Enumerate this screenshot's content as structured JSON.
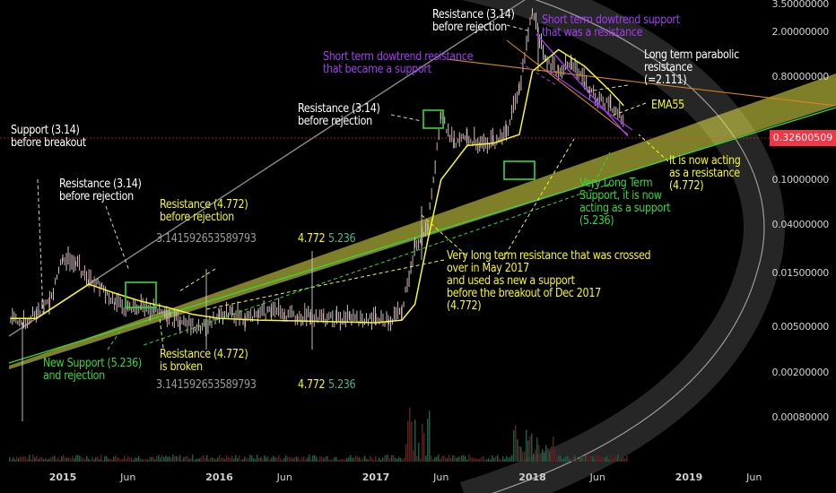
{
  "chart_data": {
    "type": "line",
    "scale": "log",
    "title": "",
    "y_ticks": [
      "3.50000000",
      "2.00000000",
      "0.80000000",
      "0.32600509",
      "0.10000000",
      "0.04000000",
      "0.01500000",
      "0.00500000",
      "0.00200000",
      "0.00080000"
    ],
    "x_ticks": [
      "2015",
      "Jun",
      "2016",
      "Jun",
      "2017",
      "Jun",
      "2018",
      "Jun",
      "2019",
      "Jun"
    ],
    "current_price": "0.32600509",
    "current_price_color": "#f23645",
    "series": [
      {
        "name": "EMA55",
        "color": "#f7f72a",
        "x": [
          "2014-09",
          "2014-11",
          "2015-01",
          "2015-03",
          "2015-05",
          "2015-07",
          "2015-09",
          "2015-11",
          "2016-01",
          "2016-04",
          "2016-07",
          "2016-10",
          "2017-01",
          "2017-03",
          "2017-04",
          "2017-05",
          "2017-06",
          "2017-08",
          "2017-10",
          "2017-12",
          "2018-01",
          "2018-03",
          "2018-05",
          "2018-07",
          "2018-08"
        ],
        "values": [
          0.006,
          0.006,
          0.0085,
          0.012,
          0.01,
          0.0085,
          0.0075,
          0.0065,
          0.006,
          0.0058,
          0.0057,
          0.0056,
          0.0055,
          0.0058,
          0.008,
          0.03,
          0.1,
          0.2,
          0.21,
          0.25,
          0.9,
          1.4,
          1.0,
          0.6,
          0.45
        ]
      }
    ],
    "price_x": [
      "2014-09",
      "2014-10",
      "2014-11",
      "2014-12",
      "2015-01",
      "2015-02",
      "2015-03",
      "2015-04",
      "2015-05",
      "2015-06",
      "2015-07",
      "2015-08",
      "2015-09",
      "2015-10",
      "2015-11",
      "2015-12",
      "2016-01",
      "2016-02",
      "2016-03",
      "2016-04",
      "2016-05",
      "2016-06",
      "2016-07",
      "2016-08",
      "2016-09",
      "2016-10",
      "2016-11",
      "2016-12",
      "2017-01",
      "2017-02",
      "2017-03",
      "2017-04",
      "2017-05",
      "2017-06",
      "2017-07",
      "2017-08",
      "2017-09",
      "2017-10",
      "2017-11",
      "2017-12",
      "2018-01",
      "2018-02",
      "2018-03",
      "2018-04",
      "2018-05",
      "2018-06",
      "2018-07",
      "2018-08"
    ],
    "price_values": [
      0.006,
      0.0055,
      0.0065,
      0.008,
      0.02,
      0.018,
      0.013,
      0.011,
      0.008,
      0.007,
      0.0075,
      0.007,
      0.006,
      0.0055,
      0.005,
      0.0052,
      0.006,
      0.0065,
      0.0058,
      0.0062,
      0.007,
      0.0065,
      0.006,
      0.0062,
      0.0058,
      0.0057,
      0.006,
      0.0056,
      0.0058,
      0.0055,
      0.007,
      0.025,
      0.04,
      0.35,
      0.2,
      0.24,
      0.2,
      0.21,
      0.25,
      0.6,
      3.0,
      1.1,
      0.9,
      1.0,
      0.7,
      0.5,
      0.45,
      0.33
    ]
  },
  "annotations": {
    "support_314_breakout": "Support (3.14)\nbefore breakout",
    "resistance_314_rejection_left": "Resistance (3.14)\nbefore rejection",
    "resistance_4772_rejection": "Resistance (4.772)\nbefore rejection",
    "fib_314_top": "3.141592653589793",
    "fib_4772_top": "4.772",
    "fib_5236_top": "5.236",
    "resistance_314_rejection_mid": "Resistance (3.14)\nbefore rejection",
    "resistance_314_rejection_top": "Resistance (3.14)\nbefore rejection",
    "short_term_resistance_support": "Short term dowtrend resistance\nthat became a support",
    "short_term_support_resistance": "Short term dowtrend support\nthat was a resistance",
    "long_term_parabolic": "Long term parabolic\nresistance\n(=2.111)",
    "ema55_label": "EMA55",
    "now_acting_resistance": "It is now acting\nas a resistance\n(4.772)",
    "very_long_support": "Very Long Term\nSupport, it is now\nacting as a support\n(5.236)",
    "very_long_resistance": "Very long term resistance that was crossed\nover in May 2017\nand used as new a support\nbefore the breakout of Dec 2017\n(4.772)",
    "new_support_5236": "New Support (5.236)\nand rejection",
    "resistance_4772_broken": "Resistance (4.772)\nis broken",
    "fib_314_bottom": "3.141592653589793",
    "fib_4772_bottom": "4.772",
    "fib_5236_bottom": "5.236"
  },
  "colors": {
    "background": "#000000",
    "candles": "#c8c8c8",
    "ema": "#f7f72a",
    "fib_band": "#e8e84a",
    "green_line": "#37d83a",
    "orange_line": "#d98a1e",
    "purple_line": "#a23cf0",
    "arc": "#cfcfcf",
    "price_line": "#f23645"
  }
}
